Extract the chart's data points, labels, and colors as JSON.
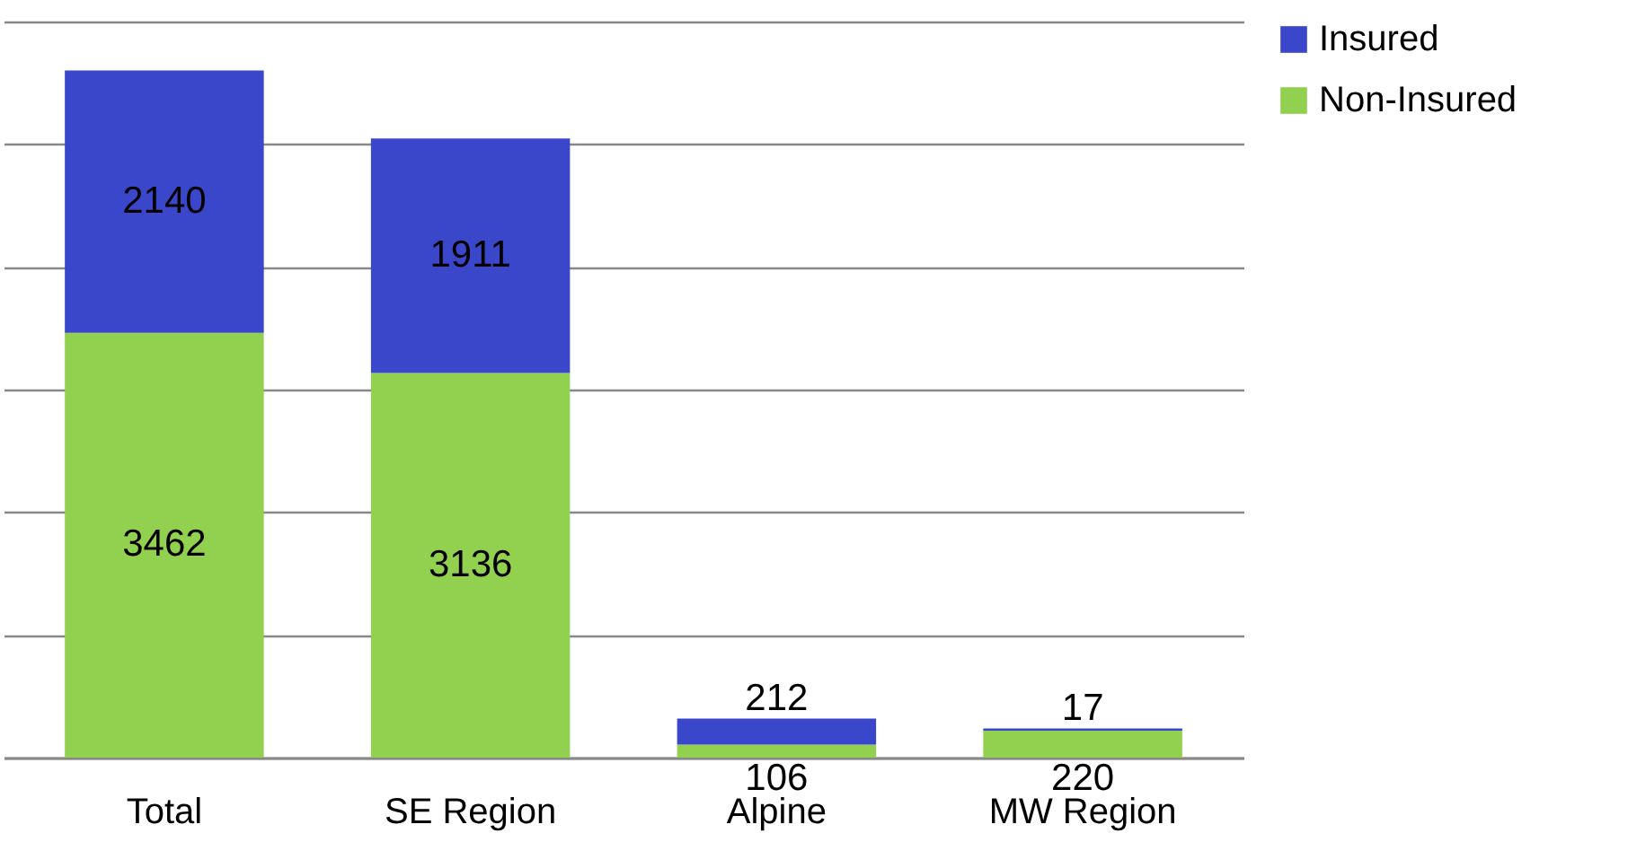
{
  "chart_data": {
    "type": "bar",
    "stacked": true,
    "categories": [
      "Total",
      "SE Region",
      "Alpine",
      "MW Region"
    ],
    "series": [
      {
        "name": "Non-Insured",
        "color": "#92d050",
        "values": [
          3462,
          3136,
          106,
          220
        ]
      },
      {
        "name": "Insured",
        "color": "#3b47cb",
        "values": [
          2140,
          1911,
          212,
          17
        ]
      }
    ],
    "ylim": [
      0,
      6000
    ],
    "yticks": [
      {
        "value": 0,
        "label": null
      },
      {
        "value": 1000,
        "label": null
      },
      {
        "value": 2000,
        "label": null
      },
      {
        "value": 3000,
        "label": null
      },
      {
        "value": 4000,
        "label": null
      },
      {
        "value": 5000,
        "label": null
      },
      {
        "value": 6000,
        "label": null
      }
    ],
    "grid": "y",
    "tick_labels": "x",
    "legend": "right",
    "data_labels": true
  }
}
